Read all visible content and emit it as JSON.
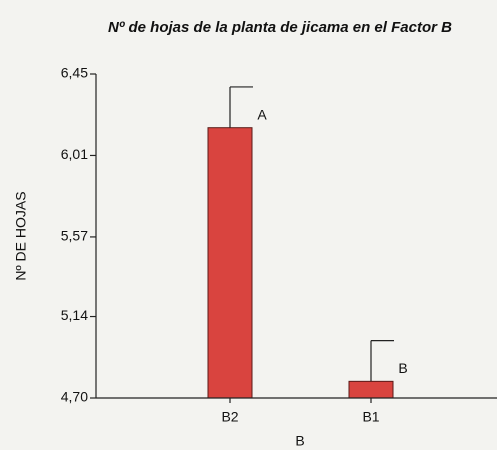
{
  "chart_data": {
    "type": "bar",
    "title": "Nº de hojas de la planta de jicama en el Factor B",
    "xlabel": "B",
    "ylabel": "Nº DE HOJAS",
    "categories": [
      "B2",
      "B1"
    ],
    "values": [
      6.16,
      4.79
    ],
    "errors": [
      0.22,
      0.22
    ],
    "letters": [
      "A",
      "B"
    ],
    "color": "#d9443f",
    "ylim": [
      4.7,
      6.45
    ],
    "yticks": [
      {
        "value": 4.7,
        "label": "4,70"
      },
      {
        "value": 5.14,
        "label": "5,14"
      },
      {
        "value": 5.57,
        "label": "5,57"
      },
      {
        "value": 6.01,
        "label": "6,01"
      },
      {
        "value": 6.45,
        "label": "6,45"
      }
    ]
  }
}
